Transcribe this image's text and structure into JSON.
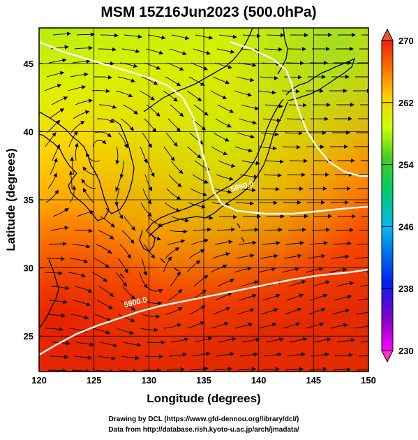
{
  "title": "MSM 15Z16Jun2023 (500.0hPa)",
  "x_axis": {
    "label": "Longitude (degrees)",
    "range": [
      120,
      150
    ],
    "ticks": [
      "120",
      "125",
      "130",
      "135",
      "140",
      "145",
      "150"
    ]
  },
  "y_axis": {
    "label": "Latitude  (degrees)",
    "range": [
      22.4,
      47.6
    ],
    "ticks": [
      "25",
      "30",
      "35",
      "40",
      "45"
    ]
  },
  "colorbar": {
    "range": [
      230,
      270
    ],
    "ticks": [
      "270",
      "262",
      "254",
      "246",
      "238",
      "230"
    ],
    "colors": [
      "#ff00ff",
      "#3300cc",
      "#0033ff",
      "#00ccee",
      "#33cc33",
      "#ccff00",
      "#ffcc00",
      "#ff6600",
      "#ee2200"
    ]
  },
  "contours": [
    {
      "label": "5880.0",
      "label_lon": 137.5,
      "label_lat": 35.6
    },
    {
      "label": "5900.0",
      "label_lon": 127.8,
      "label_lat": 27.1
    }
  ],
  "footer": {
    "line1": "Drawing by DCL (https://www.gfd-dennou.org/library/dcl/)",
    "line2": "Data from http://database.rish.kyoto-u.ac.jp/arch/jmadata/"
  }
}
